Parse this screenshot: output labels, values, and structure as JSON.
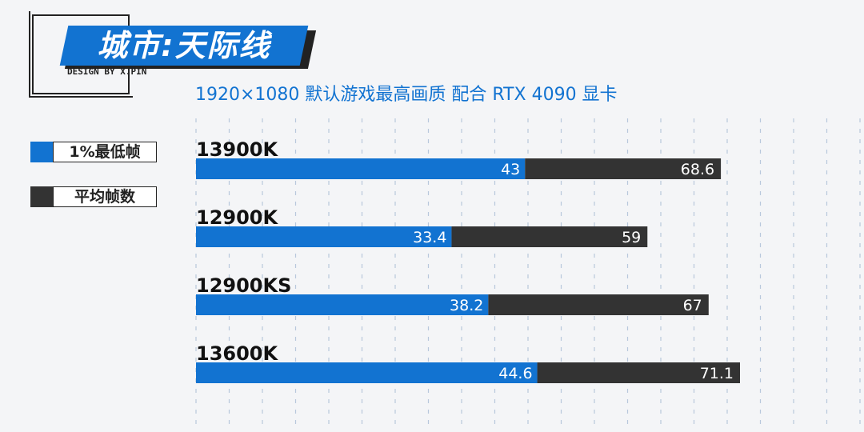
{
  "title": "城市:天际线",
  "designer": "DESIGN BY X.PIN",
  "subtitle": "1920×1080  默认游戏最高画质  配合 RTX 4090 显卡",
  "colors": {
    "low": "#1273d1",
    "avg": "#333333"
  },
  "legend": [
    {
      "label": "1%最低帧",
      "color": "#1273d1"
    },
    {
      "label": "平均帧数",
      "color": "#333333"
    }
  ],
  "chart_data": {
    "type": "bar",
    "orientation": "horizontal",
    "categories": [
      "13900K",
      "12900K",
      "12900KS",
      "13600K"
    ],
    "series": [
      {
        "name": "1%最低帧",
        "values": [
          43,
          33.4,
          38.2,
          44.6
        ]
      },
      {
        "name": "平均帧数",
        "values": [
          68.6,
          59,
          67,
          71.1
        ]
      }
    ],
    "xlim": [
      0,
      71.1
    ],
    "grid": true,
    "legend_position": "left"
  }
}
